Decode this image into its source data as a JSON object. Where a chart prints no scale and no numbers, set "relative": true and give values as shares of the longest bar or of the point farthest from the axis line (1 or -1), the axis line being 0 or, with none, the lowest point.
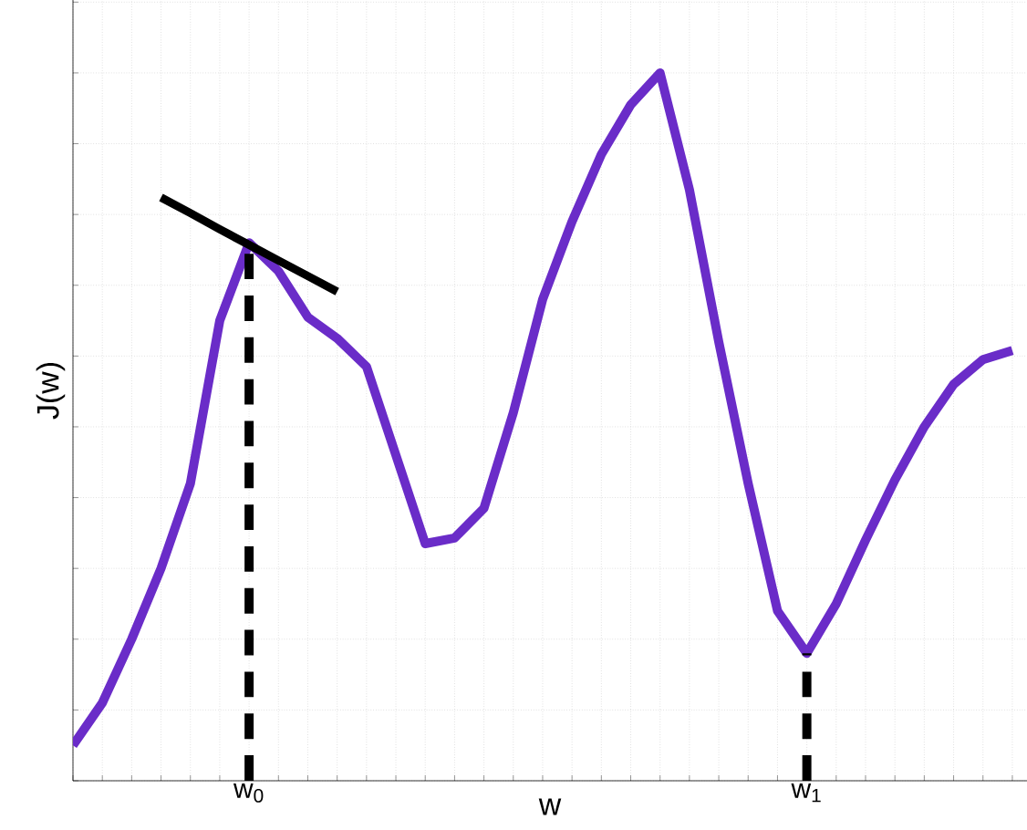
{
  "chart_data": {
    "type": "line",
    "xlabel": "w",
    "ylabel": "J(w)",
    "relative": true,
    "grid": true,
    "categories": [
      null,
      null,
      null,
      null,
      null,
      null,
      "w$_{0}$",
      null,
      null,
      null,
      null,
      null,
      null,
      null,
      null,
      null,
      null,
      null,
      null,
      null,
      null,
      null,
      null,
      null,
      null,
      "w$_{1}$",
      null,
      null,
      null,
      null,
      null,
      null,
      null
    ],
    "series": [
      {
        "color": "#6a2cc8",
        "line_style": "solid",
        "values": [
          0.05,
          0.11,
          0.2,
          0.3,
          0.42,
          0.65,
          0.76,
          0.72,
          0.655,
          0.625,
          0.585,
          0.46,
          0.335,
          0.343,
          0.385,
          0.52,
          0.68,
          0.79,
          0.885,
          0.955,
          1.0,
          0.835,
          0.62,
          0.42,
          0.24,
          0.18,
          0.25,
          0.34,
          0.425,
          0.5,
          0.56,
          0.595,
          0.608
        ]
      },
      {
        "color": "#000000",
        "line_style": "solid",
        "values": [
          null,
          null,
          null,
          0.824,
          0.802,
          0.779,
          0.757,
          0.735,
          0.713,
          0.691,
          null,
          null,
          null,
          null,
          null,
          null,
          null,
          null,
          null,
          null,
          null,
          null,
          null,
          null,
          null,
          null,
          null,
          null,
          null,
          null,
          null,
          null,
          null
        ]
      }
    ],
    "ref_lines": [
      {
        "axis": "x",
        "value": "w$_{0}$",
        "color": "#000000",
        "line_style": "dashed"
      },
      {
        "axis": "x",
        "value": "w$_{1}$",
        "color": "#000000",
        "line_style": "dashed"
      }
    ]
  }
}
